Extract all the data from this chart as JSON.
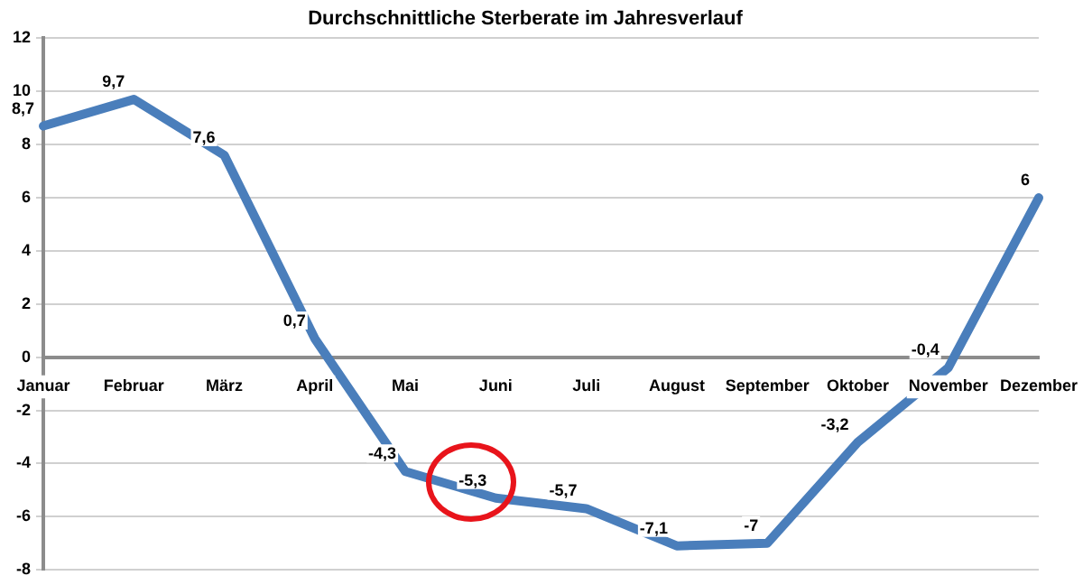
{
  "chart_data": {
    "type": "line",
    "title": "Durchschnittliche Sterberate im Jahresverlauf",
    "categories": [
      "Januar",
      "Februar",
      "März",
      "April",
      "Mai",
      "Juni",
      "Juli",
      "August",
      "September",
      "Oktober",
      "November",
      "Dezember"
    ],
    "series": [
      {
        "color": "#4a7ebb",
        "values": [
          8.7,
          9.7,
          7.6,
          0.7,
          -4.3,
          -5.3,
          -5.7,
          -7.1,
          -7,
          -3.2,
          -0.4,
          6
        ],
        "value_labels": [
          "8,7",
          "9,7",
          "7,6",
          "0,7",
          "-4,3",
          "-5,3",
          "-5,7",
          "-7,1",
          "-7",
          "-3,2",
          "-0,4",
          "6"
        ]
      }
    ],
    "ylim": [
      -8,
      12
    ],
    "yticks": [
      -8,
      -6,
      -4,
      -2,
      0,
      2,
      4,
      6,
      8,
      10,
      12
    ],
    "grid": "y",
    "legend": false,
    "marker": "none",
    "line_style": "solid"
  }
}
